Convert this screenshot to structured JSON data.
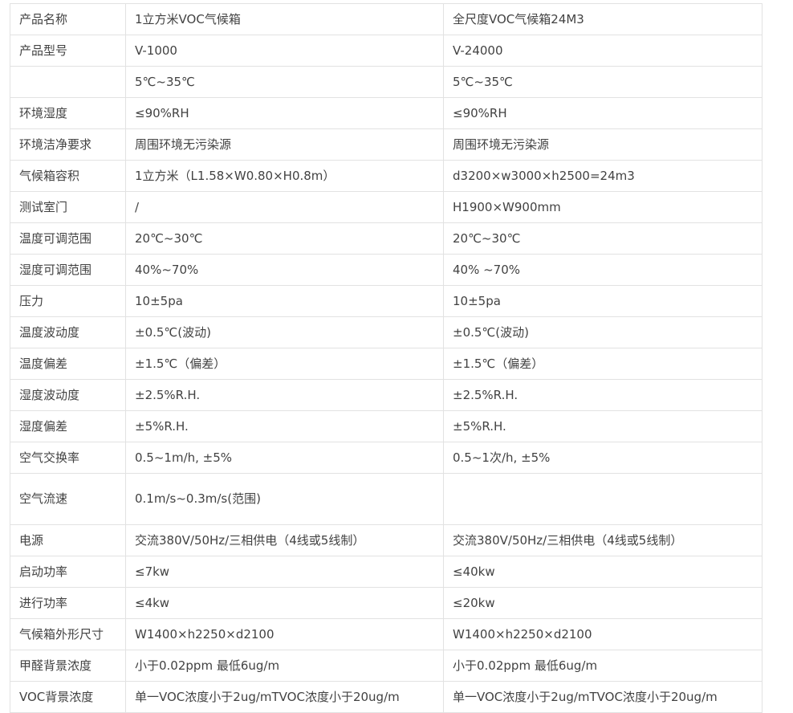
{
  "page": {
    "background_color": "#ffffff",
    "border_color": "#e2e2e2",
    "text_color": "#424242"
  },
  "table": {
    "column_keys": [
      "label",
      "v1",
      "v2"
    ],
    "rows": [
      {
        "label": "产品名称",
        "v1": "1立方米VOC气候箱",
        "v2": "全尺度VOC气候箱24M3",
        "tall": false
      },
      {
        "label": "产品型号",
        "v1": "V-1000",
        "v2": "V-24000",
        "tall": false
      },
      {
        "label": "",
        "v1": "5℃~35℃",
        "v2": "5℃~35℃",
        "tall": false
      },
      {
        "label": "环境湿度",
        "v1": "≤90%RH",
        "v2": "≤90%RH",
        "tall": false
      },
      {
        "label": "环境洁净要求",
        "v1": "周围环境无污染源",
        "v2": "周围环境无污染源",
        "tall": false
      },
      {
        "label": "气候箱容积",
        "v1": "1立方米（L1.58×W0.80×H0.8m）",
        "v2": "d3200×w3000×h2500=24m3",
        "tall": false
      },
      {
        "label": "测试室门",
        "v1": "/",
        "v2": "H1900×W900mm",
        "tall": false
      },
      {
        "label": "温度可调范围",
        "v1": "20℃~30℃",
        "v2": "20℃~30℃",
        "tall": false
      },
      {
        "label": "湿度可调范围",
        "v1": "40%~70%",
        "v2": "40% ~70%",
        "tall": false
      },
      {
        "label": "压力",
        "v1": "10±5pa",
        "v2": "10±5pa",
        "tall": false
      },
      {
        "label": "温度波动度",
        "v1": "±0.5℃(波动)",
        "v2": "±0.5℃(波动)",
        "tall": false
      },
      {
        "label": "温度偏差",
        "v1": "±1.5℃（偏差）",
        "v2": "±1.5℃（偏差）",
        "tall": false
      },
      {
        "label": "湿度波动度",
        "v1": "±2.5%R.H.",
        "v2": "±2.5%R.H.",
        "tall": false
      },
      {
        "label": "湿度偏差",
        "v1": "±5%R.H.",
        "v2": "±5%R.H.",
        "tall": false
      },
      {
        "label": "空气交换率",
        "v1": "0.5~1m/h, ±5%",
        "v2": "0.5~1次/h, ±5%",
        "tall": false
      },
      {
        "label": "空气流速",
        "v1": "0.1m/s~0.3m/s(范围)",
        "v2": "",
        "tall": true
      },
      {
        "label": "电源",
        "v1": "交流380V/50Hz/三相供电（4线或5线制）",
        "v2": "交流380V/50Hz/三相供电（4线或5线制）",
        "tall": false
      },
      {
        "label": "启动功率",
        "v1": "≤7kw",
        "v2": "≤40kw",
        "tall": false
      },
      {
        "label": "进行功率",
        "v1": "≤4kw",
        "v2": "≤20kw",
        "tall": false
      },
      {
        "label": "气候箱外形尺寸",
        "v1": "W1400×h2250×d2100",
        "v2": "W1400×h2250×d2100",
        "tall": false
      },
      {
        "label": "甲醛背景浓度",
        "v1": "小于0.02ppm 最低6ug/m",
        "v2": "小于0.02ppm 最低6ug/m",
        "tall": false
      },
      {
        "label": "VOC背景浓度",
        "v1": "单一VOC浓度小于2ug/mTVOC浓度小于20ug/m",
        "v2": "单一VOC浓度小于2ug/mTVOC浓度小于20ug/m",
        "tall": false
      }
    ]
  }
}
